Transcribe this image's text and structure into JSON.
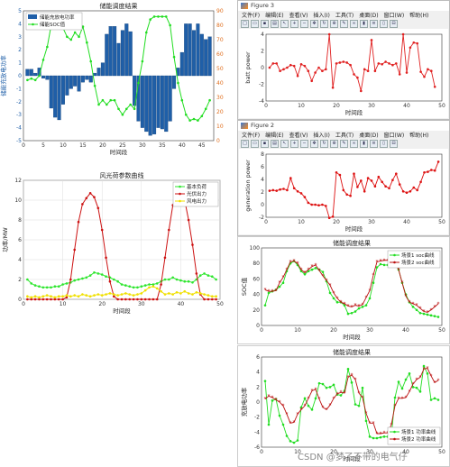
{
  "watermark": "CSDN @梦了不带的电气仔",
  "windows": {
    "fig3": {
      "title": "Figure 3",
      "menu": [
        "文件(F)",
        "编辑(E)",
        "查看(V)",
        "插入(I)",
        "工具(T)",
        "桌面(D)",
        "窗口(W)",
        "帮助(H)"
      ]
    },
    "fig2": {
      "title": "Figure 2",
      "menu": [
        "文件(F)",
        "编辑(E)",
        "查看(V)",
        "插入(I)",
        "工具(T)",
        "桌面(D)",
        "窗口(W)",
        "帮助(H)"
      ]
    }
  },
  "colors": {
    "bar": "#1f5fa8",
    "soc": "#22dd22",
    "red": "#cc1111",
    "load": "#2ee62e",
    "wind": "#f0e000",
    "batt": "#e02020",
    "gen": "#dd1111",
    "s1": "#22dd22",
    "s2": "#bb1111"
  },
  "chart_data": [
    {
      "id": "c1",
      "type": "bar",
      "title": "储能调度结果",
      "xlabel": "时间段",
      "ylabel": "储能充放电功率",
      "ylabel2": "",
      "legend": [
        "储能充放电功率",
        "储能SOC值"
      ],
      "legend_pos": "top-left",
      "xlim": [
        0,
        48
      ],
      "ylim": [
        -5,
        5
      ],
      "y2lim": [
        0,
        90
      ],
      "xticks": [
        0,
        5,
        10,
        15,
        20,
        25,
        30,
        35,
        40,
        45
      ],
      "yticks": [
        -5,
        -4,
        -3,
        -2,
        -1,
        0,
        1,
        2,
        3,
        4,
        5
      ],
      "y2ticks": [
        0,
        10,
        20,
        30,
        40,
        50,
        60,
        70,
        80,
        90
      ],
      "series": [
        {
          "name": "储能充放电功率",
          "x": [
            1,
            2,
            3,
            4,
            5,
            6,
            7,
            8,
            9,
            10,
            11,
            12,
            13,
            14,
            15,
            16,
            17,
            18,
            19,
            20,
            21,
            22,
            23,
            24,
            25,
            26,
            27,
            28,
            29,
            30,
            31,
            32,
            33,
            34,
            35,
            36,
            37,
            38,
            39,
            40,
            41,
            42,
            43,
            44,
            45,
            46,
            47
          ],
          "values": [
            0.5,
            0.5,
            0.2,
            0.6,
            -0.2,
            -0.3,
            -2.5,
            -3.2,
            -3.4,
            -2.2,
            -1.5,
            -1.0,
            -0.8,
            -1.2,
            -0.5,
            -0.3,
            -0.5,
            0.2,
            0.6,
            1.0,
            3.2,
            3.8,
            3.8,
            2.5,
            3.5,
            4.0,
            3.4,
            -2.3,
            -3.5,
            -4.0,
            -4.3,
            -4.6,
            -4.5,
            -4.0,
            -4.1,
            -4.3,
            -3.5,
            -1.0,
            0.6,
            1.8,
            4.0,
            4.0,
            3.5,
            4.0,
            3.2,
            2.8,
            3.0
          ]
        },
        {
          "name": "储能SOC值",
          "x": [
            1,
            2,
            3,
            4,
            5,
            6,
            7,
            8,
            9,
            10,
            11,
            12,
            13,
            14,
            15,
            16,
            17,
            18,
            19,
            20,
            21,
            22,
            23,
            24,
            25,
            26,
            27,
            28,
            29,
            30,
            31,
            32,
            33,
            34,
            35,
            36,
            37,
            38,
            39,
            40,
            41,
            42,
            43,
            44,
            45,
            46,
            47
          ],
          "values": [
            42,
            43,
            42,
            45,
            56,
            65,
            80,
            84,
            85,
            78,
            72,
            70,
            75,
            72,
            79,
            68,
            55,
            38,
            25,
            28,
            25,
            28,
            28,
            22,
            18,
            22,
            25,
            22,
            40,
            55,
            75,
            84,
            86,
            86,
            86,
            86,
            80,
            58,
            40,
            28,
            18,
            14,
            15,
            14,
            17,
            22,
            28
          ]
        }
      ]
    },
    {
      "id": "c2",
      "type": "line",
      "title": "风光荷参数曲线",
      "xlabel": "时间段",
      "ylabel": "功率/MW",
      "legend": [
        "基本负荷",
        "光伏出力",
        "风电出力"
      ],
      "legend_pos": "top-right",
      "xlim": [
        0,
        50
      ],
      "ylim": [
        0,
        12
      ],
      "xticks": [
        0,
        10,
        20,
        30,
        40,
        50
      ],
      "yticks": [
        0,
        2,
        4,
        6,
        8,
        10,
        12
      ],
      "series": [
        {
          "name": "基本负荷",
          "values": [
            2.0,
            1.6,
            1.4,
            1.3,
            1.2,
            1.2,
            1.2,
            1.3,
            1.3,
            1.5,
            1.6,
            1.7,
            1.9,
            2.0,
            2.1,
            2.2,
            2.4,
            2.7,
            2.6,
            2.5,
            2.3,
            2.2,
            2.0,
            1.8,
            1.5,
            1.4,
            1.3,
            1.2,
            1.2,
            1.3,
            1.4,
            1.5,
            1.5,
            1.6,
            1.8,
            2.0,
            2.0,
            2.2,
            2.0,
            1.9,
            1.8,
            1.8,
            1.7,
            2.0,
            2.4,
            2.6,
            2.4,
            2.3,
            2.0
          ]
        },
        {
          "name": "光伏出力",
          "values": [
            0,
            0,
            0,
            0,
            0,
            0,
            0,
            0,
            0,
            0,
            0.2,
            2.0,
            5.0,
            7.8,
            9.6,
            10.2,
            10.7,
            10.3,
            9.2,
            7.0,
            4.2,
            1.8,
            0.3,
            0,
            0,
            0,
            0,
            0,
            0,
            0,
            0,
            0,
            0,
            0,
            1.5,
            4.2,
            7.0,
            9.5,
            10.5,
            10.7,
            10.0,
            8.0,
            5.5,
            2.6,
            0.5,
            0,
            0,
            0,
            0
          ]
        },
        {
          "name": "风电出力",
          "values": [
            0.3,
            0.2,
            0.3,
            0.2,
            0.3,
            0.4,
            0.3,
            0.2,
            0.3,
            0.3,
            0.4,
            0.3,
            0.4,
            0.3,
            0.5,
            0.4,
            0.3,
            0.4,
            0.5,
            0.4,
            0.5,
            0.6,
            0.5,
            0.4,
            0.5,
            0.6,
            0.5,
            0.4,
            0.5,
            0.6,
            0.9,
            1.2,
            1.3,
            1.1,
            0.8,
            0.5,
            0.6,
            0.5,
            0.7,
            0.6,
            0.8,
            0.6,
            0.5,
            0.7,
            0.6,
            0.5,
            0.4,
            0.3,
            0.3
          ]
        }
      ]
    },
    {
      "id": "c3",
      "type": "line",
      "title": "",
      "xlabel": "时间段",
      "ylabel": "batt power",
      "xlim": [
        0,
        50
      ],
      "ylim": [
        -4,
        4
      ],
      "xticks": [
        0,
        10,
        20,
        30,
        40,
        50
      ],
      "yticks": [
        -4,
        -2,
        0,
        2,
        4
      ],
      "series": [
        {
          "name": "",
          "values": [
            0,
            0.5,
            0.5,
            -0.4,
            -0.2,
            0,
            0.3,
            0.2,
            -1.0,
            0.4,
            0.2,
            -0.4,
            -1.6,
            -0.6,
            0,
            -0.4,
            -0.2,
            4.0,
            -2.4,
            0.5,
            0.6,
            0.7,
            0.6,
            0.3,
            -0.8,
            -1.2,
            -2.8,
            -0.2,
            -0.4,
            3.3,
            -0.4,
            0.5,
            0.4,
            0.7,
            0.5,
            0.3,
            0.5,
            -0.8,
            4.0,
            -0.6,
            2.4,
            3.0,
            2.9,
            -0.5,
            -1.1,
            -0.2,
            -0.4,
            -2.3
          ]
        }
      ]
    },
    {
      "id": "c4",
      "type": "line",
      "title": "",
      "xlabel": "时间段",
      "ylabel": "generation power",
      "xlim": [
        0,
        50
      ],
      "ylim": [
        -2,
        8
      ],
      "xticks": [
        0,
        10,
        20,
        30,
        40,
        50
      ],
      "yticks": [
        -2,
        0,
        2,
        4,
        6,
        8
      ],
      "series": [
        {
          "name": "",
          "values": [
            2.2,
            2.3,
            2.2,
            2.4,
            2.5,
            2.3,
            4.2,
            2.6,
            2.1,
            1.8,
            1.2,
            0.3,
            0,
            0,
            -0.1,
            0,
            -0.2,
            -2.1,
            -1.9,
            5.1,
            4.7,
            2.3,
            1.6,
            1.4,
            4.9,
            2.8,
            3.8,
            2.1,
            4.2,
            3.8,
            2.9,
            4.4,
            3.6,
            2.9,
            2.6,
            3.9,
            4.9,
            3.2,
            2.1,
            1.9,
            2.1,
            2.7,
            2.3,
            3.6,
            5.1,
            5.2,
            5.5,
            5.4,
            6.8
          ]
        }
      ]
    },
    {
      "id": "c5",
      "type": "line",
      "title": "储能调度结果",
      "xlabel": "时间段",
      "ylabel": "SOC值",
      "legend": [
        "场景1 soc曲线",
        "场景2 soc曲线"
      ],
      "legend_pos": "top-right",
      "xlim": [
        0,
        50
      ],
      "ylim": [
        0,
        100
      ],
      "xticks": [
        0,
        10,
        20,
        30,
        40,
        50
      ],
      "yticks": [
        0,
        20,
        40,
        60,
        80,
        100
      ],
      "series": [
        {
          "name": "场景1 soc曲线",
          "values": [
            26,
            42,
            44,
            46,
            50,
            55,
            70,
            80,
            83,
            78,
            70,
            66,
            70,
            72,
            74,
            72,
            69,
            57,
            42,
            35,
            30,
            30,
            26,
            15,
            16,
            18,
            22,
            24,
            26,
            35,
            55,
            75,
            79,
            78,
            78,
            77,
            80,
            72,
            55,
            40,
            30,
            24,
            20,
            16,
            15,
            14,
            13,
            12,
            11
          ]
        },
        {
          "name": "场景2 soc曲线",
          "values": [
            46,
            44,
            44,
            45,
            55,
            62,
            72,
            82,
            83,
            80,
            72,
            68,
            72,
            76,
            78,
            71,
            64,
            58,
            52,
            42,
            35,
            30,
            28,
            25,
            24,
            26,
            25,
            27,
            36,
            45,
            65,
            82,
            83,
            84,
            84,
            84,
            83,
            72,
            55,
            38,
            30,
            28,
            26,
            22,
            18,
            17,
            20,
            24,
            28
          ]
        }
      ]
    },
    {
      "id": "c6",
      "type": "line",
      "title": "储能调度结果",
      "xlabel": "时间段",
      "ylabel": "充放电功率",
      "legend": [
        "场景1 功率曲线",
        "场景2 功率曲线"
      ],
      "legend_pos": "bottom-right",
      "xlim": [
        0,
        50
      ],
      "ylim": [
        -6,
        6
      ],
      "xticks": [
        0,
        10,
        20,
        30,
        40,
        50
      ],
      "yticks": [
        -6,
        -4,
        -2,
        0,
        2,
        4,
        6
      ],
      "series": [
        {
          "name": "场景1 功率曲线",
          "values": [
            2.8,
            -3.0,
            0.2,
            0.4,
            -1.8,
            -3.0,
            -4.5,
            -5.2,
            -5.4,
            -5.1,
            -0.7,
            0.5,
            -0.5,
            -1.0,
            0.5,
            2.5,
            2.4,
            1.9,
            2.0,
            2.3,
            1.0,
            0.9,
            1.5,
            4.4,
            2.6,
            -0.3,
            -0.5,
            1.9,
            -2.5,
            -4.6,
            -4.8,
            -4.8,
            -4.7,
            -4.6,
            -4.6,
            -4.5,
            0.6,
            2.7,
            1.8,
            3.0,
            3.8,
            2.0,
            1.9,
            1.4,
            4.8,
            3.8,
            0.3,
            0.5,
            0.3
          ]
        },
        {
          "name": "场景2 功率曲线",
          "values": [
            0.4,
            0.8,
            0.6,
            0.3,
            0,
            -0.5,
            -1.6,
            -2.8,
            -2.7,
            -1.6,
            -1.0,
            -0.5,
            0.5,
            1.5,
            1.7,
            0.4,
            -0.7,
            -1.0,
            -0.4,
            0.5,
            1.1,
            1.3,
            1.2,
            3.3,
            3.6,
            3.0,
            1.2,
            0.6,
            -1.5,
            -2.8,
            -2.8,
            -4.2,
            -4.2,
            -4.1,
            -4.1,
            -3.0,
            -0.5,
            0.5,
            0.5,
            0.6,
            1.4,
            2.4,
            3.0,
            3.3,
            4.4,
            4.5,
            3.5,
            2.6,
            2.9
          ]
        }
      ]
    }
  ]
}
